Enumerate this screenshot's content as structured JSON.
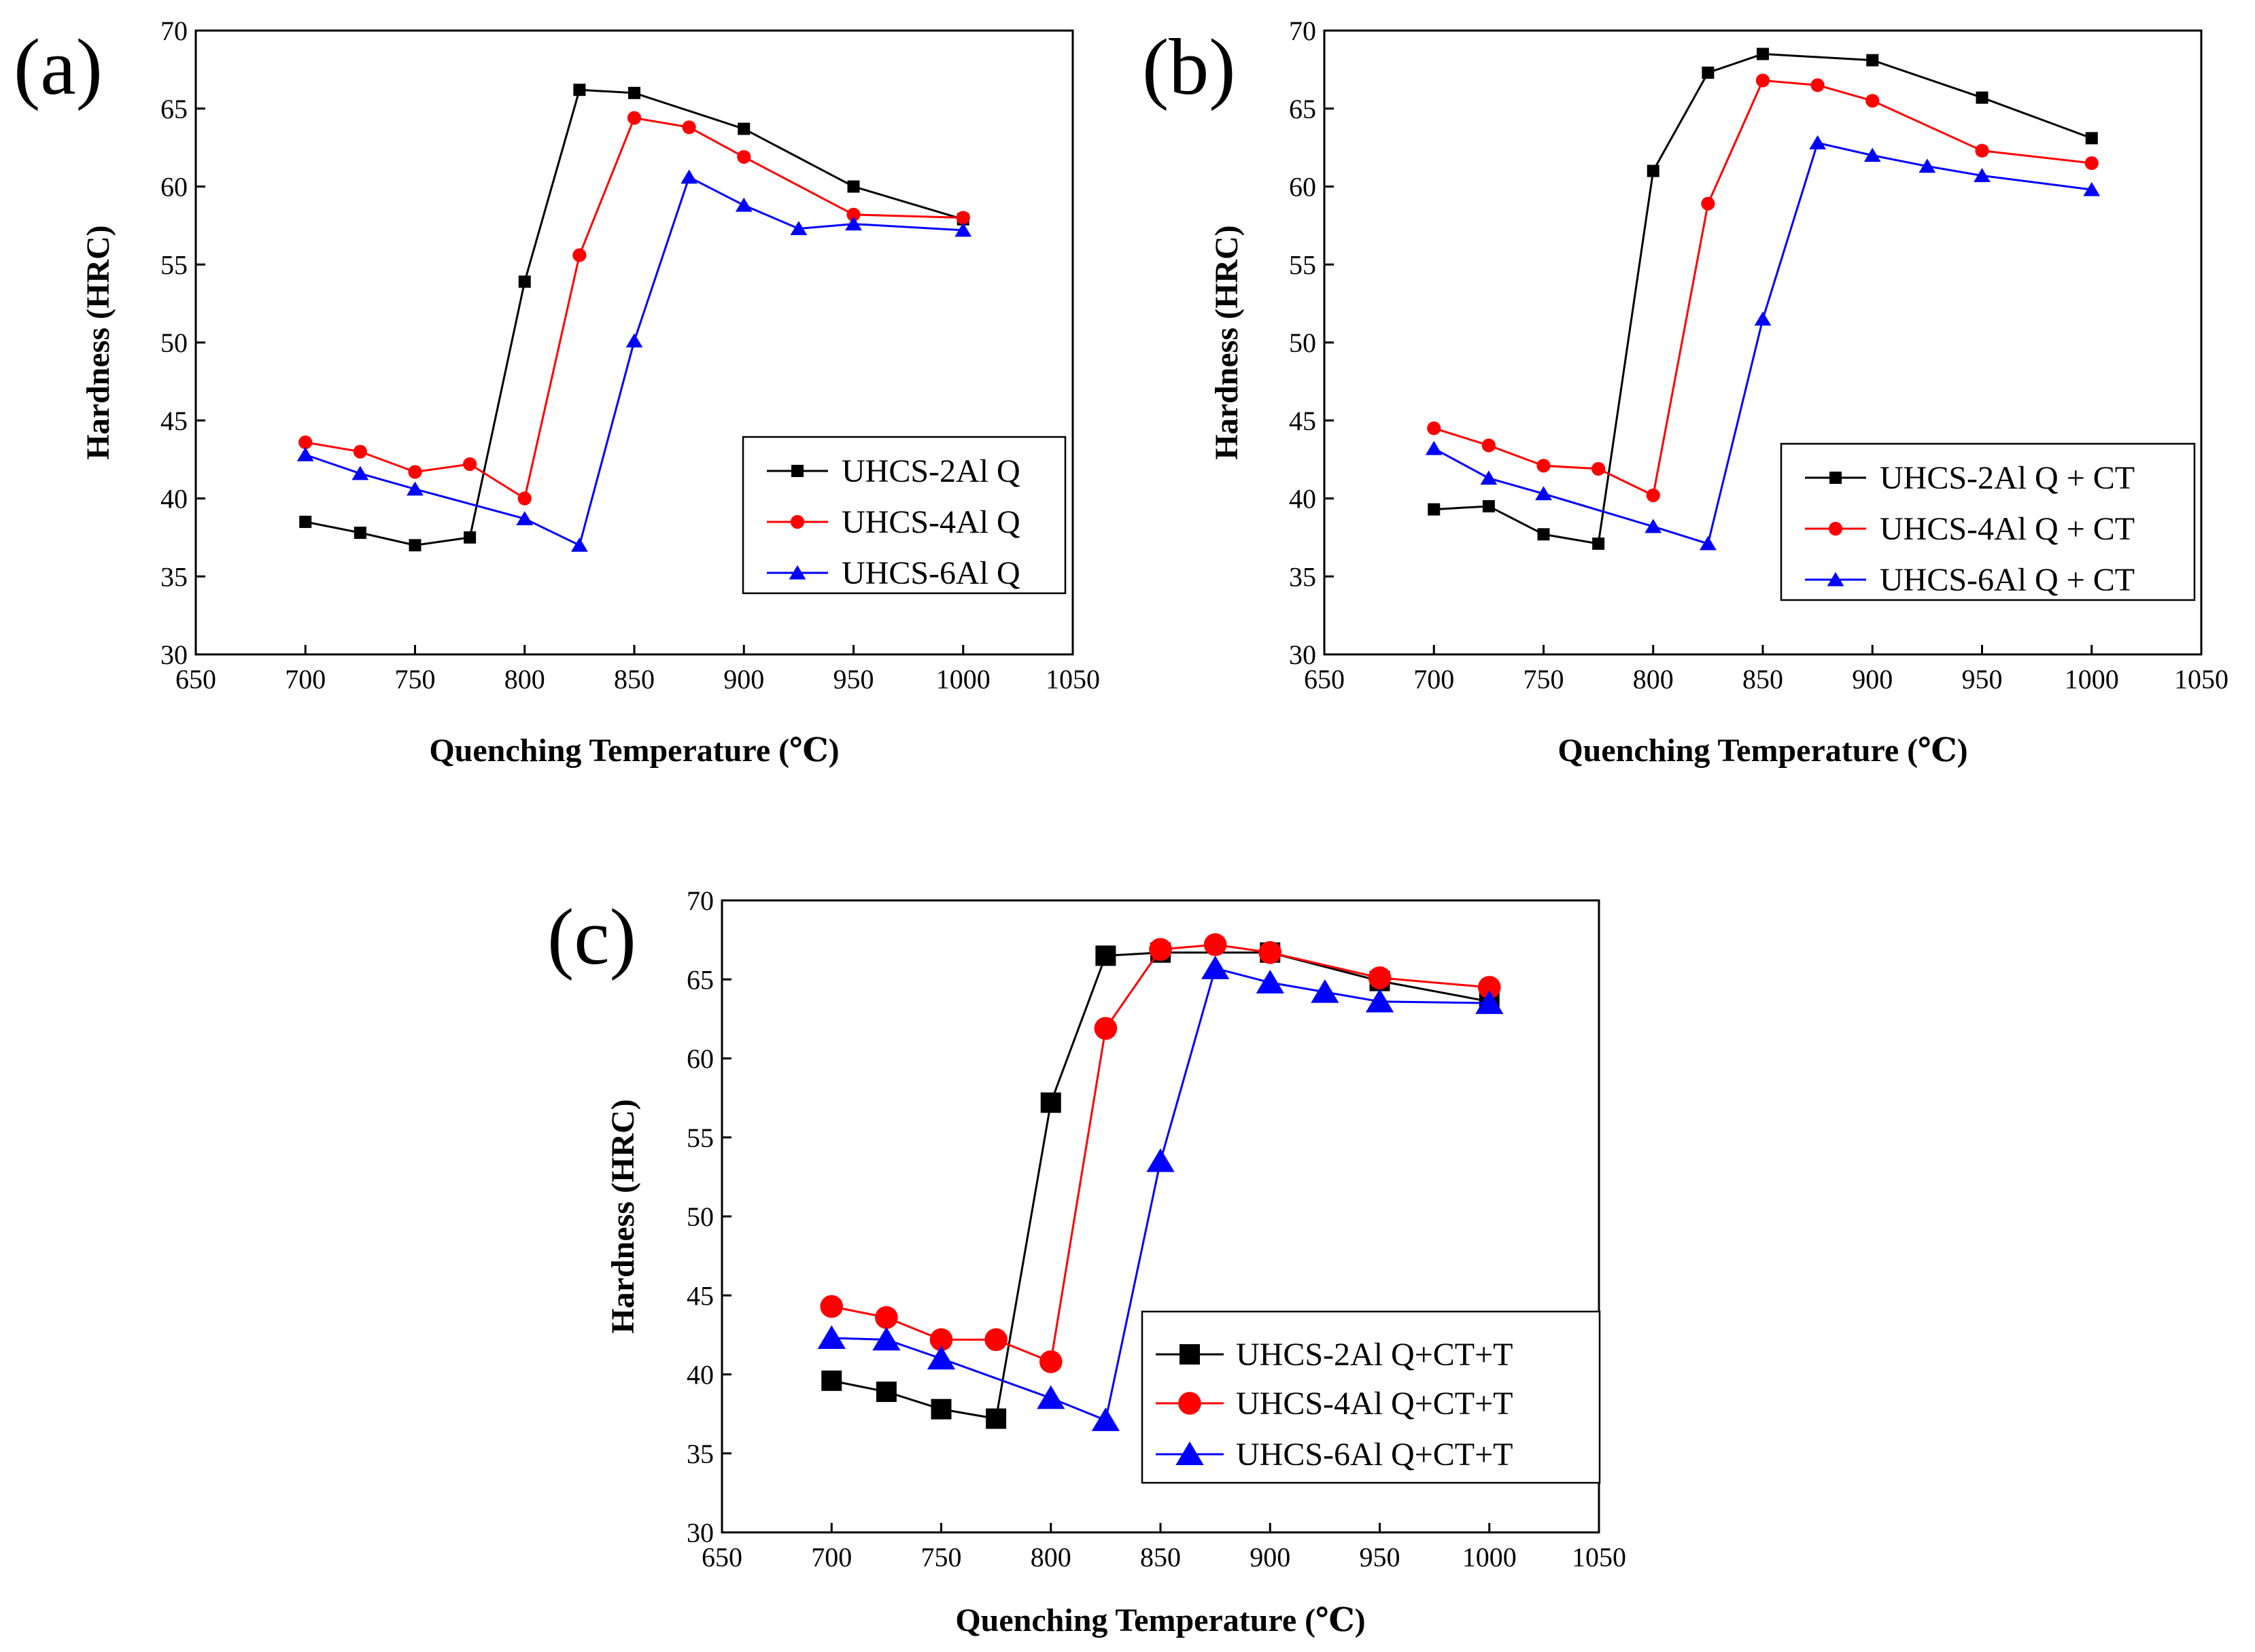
{
  "chart_data": [
    {
      "type": "line",
      "panel_label": "(a)",
      "xlabel": "Quenching Temperature (℃)",
      "ylabel": "Hardness (HRC)",
      "xlim": [
        650,
        1050
      ],
      "ylim": [
        30,
        70
      ],
      "xticks": [
        "650",
        "700",
        "750",
        "800",
        "850",
        "900",
        "950",
        "1000",
        "1050"
      ],
      "yticks": [
        "30",
        "35",
        "40",
        "45",
        "50",
        "55",
        "60",
        "65",
        "70"
      ],
      "legend_position": "bottom-right",
      "series": [
        {
          "name": "UHCS-2Al Q",
          "color": "#000000",
          "marker": "square",
          "x": [
            700,
            725,
            750,
            775,
            800,
            825,
            850,
            900,
            950,
            1000
          ],
          "y": [
            38.5,
            37.8,
            37.0,
            37.5,
            53.9,
            66.2,
            66.0,
            63.7,
            60.0,
            57.9
          ]
        },
        {
          "name": "UHCS-4Al Q",
          "color": "#ff0000",
          "marker": "circle",
          "x": [
            700,
            725,
            750,
            775,
            800,
            825,
            850,
            875,
            900,
            950,
            1000
          ],
          "y": [
            43.6,
            43.0,
            41.7,
            42.2,
            40.0,
            55.6,
            64.4,
            63.8,
            61.9,
            58.2,
            58.0
          ]
        },
        {
          "name": "UHCS-6Al Q",
          "color": "#0000ff",
          "marker": "triangle",
          "x": [
            700,
            725,
            750,
            800,
            825,
            850,
            875,
            900,
            925,
            950,
            1000
          ],
          "y": [
            42.8,
            41.6,
            40.6,
            38.7,
            37.0,
            50.1,
            60.6,
            58.8,
            57.3,
            57.6,
            57.2
          ]
        }
      ]
    },
    {
      "type": "line",
      "panel_label": "(b)",
      "xlabel": "Quenching Temperature (℃)",
      "ylabel": "Hardness (HRC)",
      "xlim": [
        650,
        1050
      ],
      "ylim": [
        30,
        70
      ],
      "xticks": [
        "650",
        "700",
        "750",
        "800",
        "850",
        "900",
        "950",
        "1000",
        "1050"
      ],
      "yticks": [
        "30",
        "35",
        "40",
        "45",
        "50",
        "55",
        "60",
        "65",
        "70"
      ],
      "legend_position": "bottom-right",
      "series": [
        {
          "name": "UHCS-2Al Q + CT",
          "color": "#000000",
          "marker": "square",
          "x": [
            700,
            725,
            750,
            775,
            800,
            825,
            850,
            900,
            950,
            1000
          ],
          "y": [
            39.3,
            39.5,
            37.7,
            37.1,
            61.0,
            67.3,
            68.5,
            68.1,
            65.7,
            63.1
          ]
        },
        {
          "name": "UHCS-4Al Q + CT",
          "color": "#ff0000",
          "marker": "circle",
          "x": [
            700,
            725,
            750,
            775,
            800,
            825,
            850,
            875,
            900,
            950,
            1000
          ],
          "y": [
            44.5,
            43.4,
            42.1,
            41.9,
            40.2,
            58.9,
            66.8,
            66.5,
            65.5,
            62.3,
            61.5
          ]
        },
        {
          "name": "UHCS-6Al Q + CT",
          "color": "#0000ff",
          "marker": "triangle",
          "x": [
            700,
            725,
            750,
            800,
            825,
            850,
            875,
            900,
            925,
            950,
            1000
          ],
          "y": [
            43.2,
            41.3,
            40.3,
            38.2,
            37.1,
            51.5,
            62.8,
            62.0,
            61.3,
            60.7,
            59.8
          ]
        }
      ]
    },
    {
      "type": "line",
      "panel_label": "(c)",
      "xlabel": "Quenching Temperature (℃)",
      "ylabel": "Hardness (HRC)",
      "xlim": [
        650,
        1050
      ],
      "ylim": [
        30,
        70
      ],
      "xticks": [
        "650",
        "700",
        "750",
        "800",
        "850",
        "900",
        "950",
        "1000",
        "1050"
      ],
      "yticks": [
        "30",
        "35",
        "40",
        "45",
        "50",
        "55",
        "60",
        "65",
        "70"
      ],
      "legend_position": "bottom-right",
      "series": [
        {
          "name": "UHCS-2Al Q+CT+T",
          "color": "#000000",
          "marker": "square",
          "x": [
            700,
            725,
            750,
            775,
            800,
            825,
            850,
            900,
            950,
            1000
          ],
          "y": [
            39.6,
            38.9,
            37.8,
            37.2,
            57.2,
            66.5,
            66.7,
            66.7,
            64.9,
            63.6
          ]
        },
        {
          "name": "UHCS-4Al Q+CT+T",
          "color": "#ff0000",
          "marker": "circle",
          "x": [
            700,
            725,
            750,
            775,
            800,
            825,
            850,
            875,
            900,
            950,
            1000
          ],
          "y": [
            44.3,
            43.6,
            42.2,
            42.2,
            40.8,
            61.9,
            66.9,
            67.2,
            66.7,
            65.1,
            64.5
          ]
        },
        {
          "name": "UHCS-6Al Q+CT+T",
          "color": "#0000ff",
          "marker": "triangle",
          "x": [
            700,
            725,
            750,
            800,
            825,
            850,
            875,
            900,
            925,
            950,
            1000
          ],
          "y": [
            42.3,
            42.2,
            41.0,
            38.5,
            37.1,
            53.5,
            65.7,
            64.8,
            64.2,
            63.6,
            63.5
          ]
        }
      ]
    }
  ]
}
